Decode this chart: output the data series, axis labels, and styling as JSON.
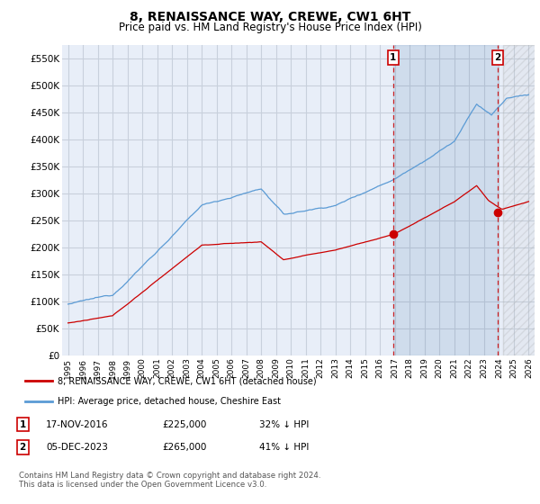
{
  "title": "8, RENAISSANCE WAY, CREWE, CW1 6HT",
  "subtitle": "Price paid vs. HM Land Registry's House Price Index (HPI)",
  "ylim": [
    0,
    575000
  ],
  "yticks": [
    0,
    50000,
    100000,
    150000,
    200000,
    250000,
    300000,
    350000,
    400000,
    450000,
    500000,
    550000
  ],
  "yticklabels": [
    "£0",
    "£50K",
    "£100K",
    "£150K",
    "£200K",
    "£250K",
    "£300K",
    "£350K",
    "£400K",
    "£450K",
    "£500K",
    "£550K"
  ],
  "hpi_color": "#5b9bd5",
  "price_color": "#cc0000",
  "sale1_date_num": 2016.88,
  "sale1_price": 225000,
  "sale2_date_num": 2023.92,
  "sale2_price": 265000,
  "legend_line1": "8, RENAISSANCE WAY, CREWE, CW1 6HT (detached house)",
  "legend_line2": "HPI: Average price, detached house, Cheshire East",
  "table_row1": [
    "1",
    "17-NOV-2016",
    "£225,000",
    "32% ↓ HPI"
  ],
  "table_row2": [
    "2",
    "05-DEC-2023",
    "£265,000",
    "41% ↓ HPI"
  ],
  "footnote": "Contains HM Land Registry data © Crown copyright and database right 2024.\nThis data is licensed under the Open Government Licence v3.0.",
  "bg_color": "#e8eef8",
  "bg_color_shaded": "#dde6f5",
  "grid_color": "#c8d0dc",
  "white": "#ffffff",
  "xmin": 1995,
  "xmax": 2026,
  "title_fontsize": 10,
  "subtitle_fontsize": 8.5,
  "tick_fontsize": 7.5
}
